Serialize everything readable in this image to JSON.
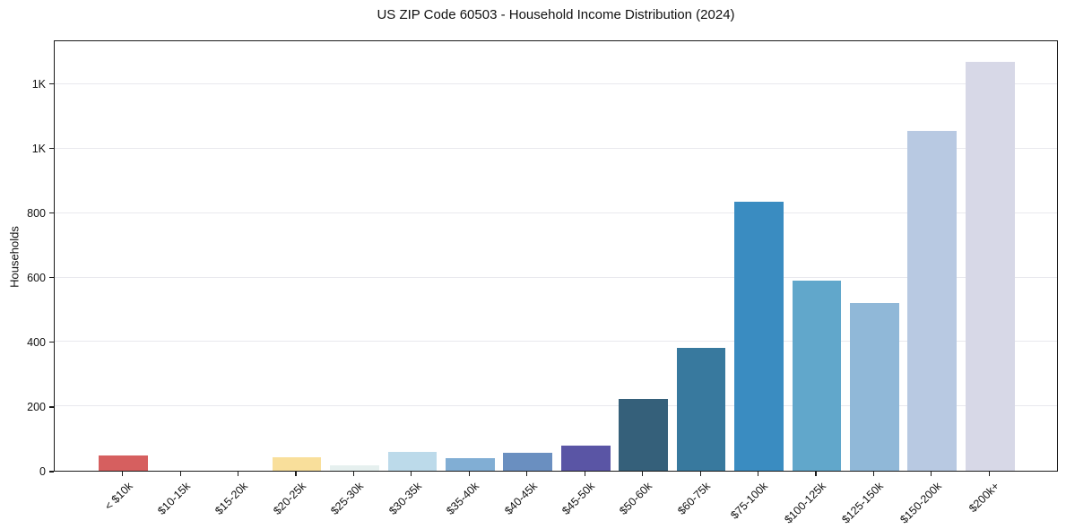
{
  "chart_data": {
    "type": "bar",
    "title": "US ZIP Code 60503 - Household Income Distribution (2024)",
    "xlabel": "",
    "ylabel": "Households",
    "categories": [
      "< $10k",
      "$10-15k",
      "$15-20k",
      "$20-25k",
      "$25-30k",
      "$30-35k",
      "$35-40k",
      "$40-45k",
      "$45-50k",
      "$50-60k",
      "$60-75k",
      "$75-100k",
      "$100-125k",
      "$125-150k",
      "$150-200k",
      "$200k+"
    ],
    "values": [
      47,
      0,
      0,
      43,
      18,
      58,
      40,
      55,
      78,
      224,
      383,
      836,
      590,
      520,
      1055,
      1271
    ],
    "bar_colors": [
      "#d65f5f",
      "#cccccc",
      "#cccccc",
      "#f9df9b",
      "#e6f0ef",
      "#bcdaea",
      "#81aed4",
      "#6a8fc0",
      "#5a55a5",
      "#35607a",
      "#38799e",
      "#3a8cc1",
      "#61a7cb",
      "#90b8d8",
      "#b8c9e2",
      "#d7d8e7"
    ],
    "ylim": [
      0,
      1335
    ],
    "ytick_values": [
      0,
      200,
      400,
      600,
      800,
      1000,
      1200
    ],
    "ytick_labels": [
      "0",
      "200",
      "400",
      "600",
      "800",
      "1K",
      "1K"
    ],
    "grid": "horizontal",
    "legend": "none",
    "background_color": "#ffffff",
    "spine_color": "#1a1a1a",
    "gridline_color": "#e9e9ee"
  }
}
